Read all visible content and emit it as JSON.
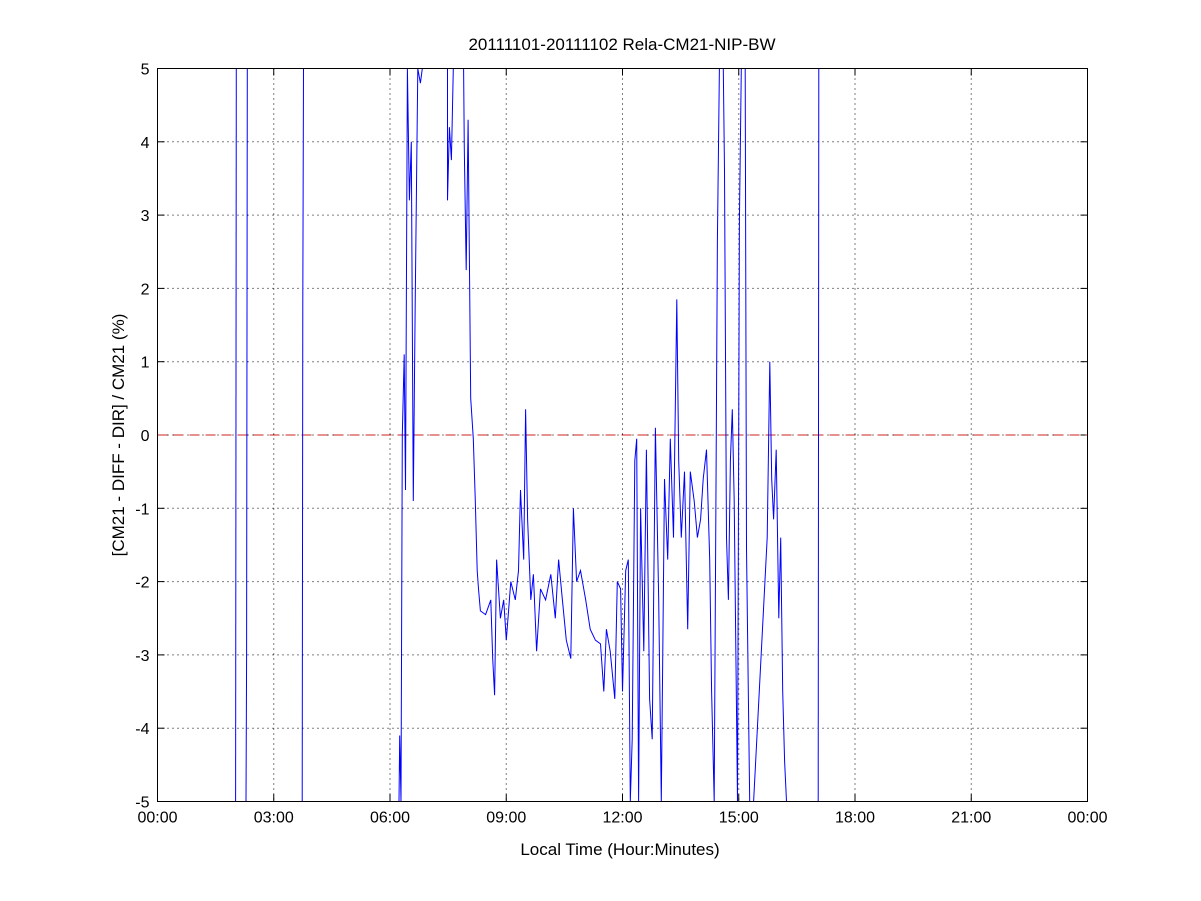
{
  "chart_data": {
    "type": "line",
    "title": "20111101-20111102 Rela-CM21-NIP-BW",
    "xlabel": "Local Time (Hour:Minutes)",
    "ylabel": "[CM21 - DIFF - DIR] / CM21 (%)",
    "xlim": [
      "00:00",
      "24:00"
    ],
    "ylim": [
      -5,
      5
    ],
    "xticks": [
      "00:00",
      "03:00",
      "06:00",
      "09:00",
      "12:00",
      "15:00",
      "18:00",
      "21:00",
      "00:00"
    ],
    "yticks": [
      -5,
      -4,
      -3,
      -2,
      -1,
      0,
      1,
      2,
      3,
      4,
      5
    ],
    "grid": true,
    "reference_line": {
      "y": 0,
      "style": "dashed",
      "color": "#cc2222"
    },
    "series_color": "#0000ff",
    "series": [
      {
        "segments": [
          [
            [
              "02:01",
              -8
            ],
            [
              "02:02",
              8
            ]
          ],
          [
            [
              "02:17",
              -8
            ],
            [
              "02:18",
              -3
            ],
            [
              "02:19",
              8
            ]
          ],
          [
            [
              "03:44",
              -8
            ],
            [
              "03:45",
              1.8
            ],
            [
              "03:46",
              8
            ]
          ],
          [
            [
              "06:14",
              -8
            ],
            [
              "06:15",
              -4.1
            ],
            [
              "06:17",
              -8
            ],
            [
              "06:19",
              0
            ],
            [
              "06:22",
              1.1
            ],
            [
              "06:24",
              -0.75
            ],
            [
              "06:27",
              8
            ],
            [
              "06:30",
              3.2
            ],
            [
              "06:33",
              4
            ],
            [
              "06:36",
              -0.9
            ],
            [
              "06:39",
              1.8
            ],
            [
              "06:43",
              8
            ],
            [
              "06:47",
              4.8
            ],
            [
              "06:50",
              8
            ],
            [
              "07:29",
              8
            ],
            [
              "07:29",
              3.2
            ],
            [
              "07:32",
              4.2
            ],
            [
              "07:35",
              3.75
            ],
            [
              "07:38",
              8
            ],
            [
              "07:54",
              8
            ],
            [
              "07:55",
              3.9
            ],
            [
              "07:58",
              2.25
            ],
            [
              "08:01",
              4.3
            ],
            [
              "08:05",
              0.5
            ],
            [
              "08:09",
              -0.05
            ],
            [
              "08:12",
              -0.9
            ],
            [
              "08:15",
              -1.85
            ],
            [
              "08:17",
              -2.1
            ],
            [
              "08:20",
              -2.4
            ],
            [
              "08:28",
              -2.45
            ],
            [
              "08:36",
              -2.25
            ],
            [
              "08:39",
              -3.05
            ],
            [
              "08:42",
              -3.55
            ],
            [
              "08:45",
              -1.7
            ],
            [
              "08:51",
              -2.5
            ],
            [
              "08:56",
              -2.25
            ],
            [
              "09:00",
              -2.8
            ],
            [
              "09:07",
              -2
            ],
            [
              "09:14",
              -2.25
            ],
            [
              "09:19",
              -1.85
            ],
            [
              "09:22",
              -0.75
            ],
            [
              "09:27",
              -1.7
            ],
            [
              "09:30",
              0.35
            ],
            [
              "09:33",
              -1.15
            ],
            [
              "09:38",
              -2.25
            ],
            [
              "09:42",
              -1.9
            ],
            [
              "09:47",
              -2.95
            ],
            [
              "09:53",
              -2.1
            ],
            [
              "10:01",
              -2.25
            ],
            [
              "10:09",
              -1.9
            ],
            [
              "10:16",
              -2.5
            ],
            [
              "10:21",
              -1.7
            ],
            [
              "10:27",
              -2.25
            ],
            [
              "10:33",
              -2.8
            ],
            [
              "10:40",
              -3.05
            ],
            [
              "10:44",
              -1.0
            ],
            [
              "10:49",
              -2
            ],
            [
              "10:55",
              -1.85
            ],
            [
              "11:03",
              -2.25
            ],
            [
              "11:10",
              -2.65
            ],
            [
              "11:18",
              -2.8
            ],
            [
              "11:26",
              -2.85
            ],
            [
              "11:31",
              -3.5
            ],
            [
              "11:35",
              -2.65
            ],
            [
              "11:41",
              -2.95
            ],
            [
              "11:48",
              -3.6
            ],
            [
              "11:52",
              -2
            ],
            [
              "11:57",
              -2.1
            ],
            [
              "12:00",
              -3.5
            ],
            [
              "12:05",
              -1.85
            ],
            [
              "12:09",
              -1.7
            ],
            [
              "12:12",
              -8
            ],
            [
              "12:15",
              -4.15
            ],
            [
              "12:19",
              -0.35
            ],
            [
              "12:22",
              -0.05
            ],
            [
              "12:25",
              -8
            ],
            [
              "12:28",
              -1.0
            ],
            [
              "12:33",
              -2.95
            ],
            [
              "12:37",
              -0.2
            ],
            [
              "12:42",
              -3.6
            ],
            [
              "12:46",
              -4.15
            ],
            [
              "12:51",
              0.1
            ],
            [
              "12:56",
              -2.25
            ],
            [
              "13:00",
              -8
            ],
            [
              "13:05",
              -0.6
            ],
            [
              "13:10",
              -1.7
            ],
            [
              "13:14",
              -0.05
            ],
            [
              "13:19",
              -1.4
            ],
            [
              "13:24",
              1.85
            ],
            [
              "13:27",
              -0.35
            ],
            [
              "13:31",
              -1.4
            ],
            [
              "13:36",
              -0.5
            ],
            [
              "13:41",
              -2.65
            ],
            [
              "13:45",
              -0.5
            ],
            [
              "13:51",
              -0.9
            ],
            [
              "13:56",
              -1.4
            ],
            [
              "14:01",
              -1.15
            ],
            [
              "14:05",
              -0.6
            ],
            [
              "14:10",
              -0.2
            ],
            [
              "14:15",
              -1.7
            ],
            [
              "14:18",
              -3.5
            ],
            [
              "14:22",
              -8
            ],
            [
              "14:27",
              2.65
            ],
            [
              "14:30",
              8
            ],
            [
              "14:36",
              8
            ],
            [
              "14:38",
              3.6
            ],
            [
              "14:41",
              -1.4
            ],
            [
              "14:44",
              -2.25
            ],
            [
              "14:47",
              -0.35
            ],
            [
              "14:50",
              0.35
            ],
            [
              "14:53",
              -0.9
            ],
            [
              "14:58",
              -8
            ],
            [
              "15:01",
              2.9
            ],
            [
              "15:04",
              8
            ],
            [
              "15:10",
              8
            ],
            [
              "15:12",
              -1.55
            ],
            [
              "15:17",
              -8
            ],
            [
              "15:23",
              -8
            ],
            [
              "15:44",
              -1.4
            ],
            [
              "15:48",
              1.0
            ],
            [
              "15:51",
              -0.6
            ],
            [
              "15:54",
              -1.15
            ],
            [
              "15:58",
              -0.2
            ],
            [
              "16:02",
              -2.5
            ],
            [
              "16:05",
              -1.4
            ],
            [
              "16:08",
              -3.5
            ],
            [
              "16:11",
              -4.45
            ],
            [
              "16:14",
              -8
            ]
          ],
          [
            [
              "17:03",
              -8
            ],
            [
              "17:04",
              8
            ]
          ]
        ]
      }
    ]
  }
}
